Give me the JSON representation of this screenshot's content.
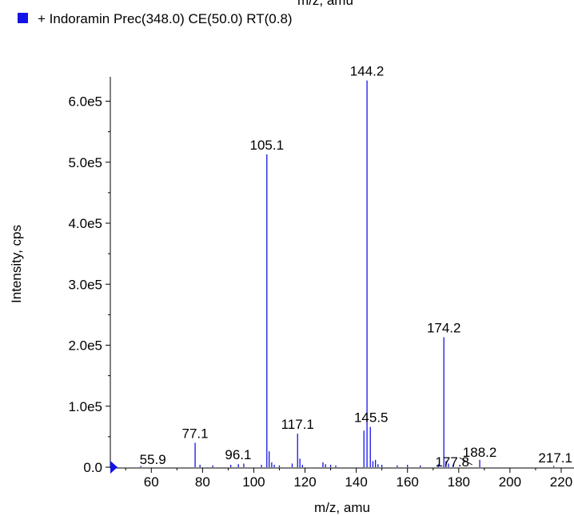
{
  "header": {
    "cut_axis_label": "m/z, amu",
    "legend_text": "+ Indoramin Prec(348.0) CE(50.0) RT(0.8)"
  },
  "colors": {
    "series": "#1414e6",
    "annotation_line": "#000000",
    "axis": "#000000"
  },
  "chart_data": {
    "type": "bar",
    "xlabel": "m/z, amu",
    "ylabel": "Intensity, cps",
    "xlim": [
      44,
      225
    ],
    "ylim": [
      0,
      640000
    ],
    "x_ticks": [
      60,
      80,
      100,
      120,
      140,
      160,
      180,
      200,
      220
    ],
    "x_tick_labels": [
      "60",
      "80",
      "100",
      "120",
      "140",
      "160",
      "180",
      "200",
      "220"
    ],
    "y_ticks": [
      0,
      100000,
      200000,
      300000,
      400000,
      500000,
      600000
    ],
    "y_tick_labels": [
      "0.0",
      "1.0e5",
      "2.0e5",
      "3.0e5",
      "4.0e5",
      "5.0e5",
      "6.0e5"
    ],
    "grid": false,
    "legend": "top-left",
    "series": [
      {
        "name": "+ Indoramin Prec(348.0) CE(50.0) RT(0.8)",
        "peaks": [
          {
            "x": 55.9,
            "y": 2000
          },
          {
            "x": 77.1,
            "y": 40000
          },
          {
            "x": 79.0,
            "y": 4000
          },
          {
            "x": 84.0,
            "y": 3000
          },
          {
            "x": 91.0,
            "y": 4000
          },
          {
            "x": 94.0,
            "y": 5000
          },
          {
            "x": 96.1,
            "y": 6000
          },
          {
            "x": 103.0,
            "y": 4000
          },
          {
            "x": 105.1,
            "y": 513000
          },
          {
            "x": 106.0,
            "y": 26000
          },
          {
            "x": 107.0,
            "y": 8000
          },
          {
            "x": 108.0,
            "y": 4000
          },
          {
            "x": 110.0,
            "y": 3000
          },
          {
            "x": 115.0,
            "y": 6000
          },
          {
            "x": 117.1,
            "y": 55000
          },
          {
            "x": 118.0,
            "y": 14000
          },
          {
            "x": 119.0,
            "y": 4000
          },
          {
            "x": 127.0,
            "y": 8000
          },
          {
            "x": 128.0,
            "y": 5000
          },
          {
            "x": 130.0,
            "y": 4000
          },
          {
            "x": 132.0,
            "y": 3000
          },
          {
            "x": 143.0,
            "y": 60000
          },
          {
            "x": 144.2,
            "y": 634000
          },
          {
            "x": 145.5,
            "y": 66000
          },
          {
            "x": 146.5,
            "y": 10000
          },
          {
            "x": 147.5,
            "y": 12000
          },
          {
            "x": 148.5,
            "y": 5000
          },
          {
            "x": 150.0,
            "y": 4000
          },
          {
            "x": 156.0,
            "y": 3000
          },
          {
            "x": 160.0,
            "y": 4000
          },
          {
            "x": 165.0,
            "y": 3000
          },
          {
            "x": 172.0,
            "y": 5000
          },
          {
            "x": 174.2,
            "y": 213000
          },
          {
            "x": 175.0,
            "y": 10000
          },
          {
            "x": 176.0,
            "y": 6000
          },
          {
            "x": 177.8,
            "y": 4000
          },
          {
            "x": 188.2,
            "y": 12000
          },
          {
            "x": 217.1,
            "y": 2000
          }
        ],
        "labels": [
          {
            "x": 55.9,
            "text": "55.9"
          },
          {
            "x": 77.1,
            "text": "77.1"
          },
          {
            "x": 96.1,
            "text": "96.1"
          },
          {
            "x": 105.1,
            "text": "105.1"
          },
          {
            "x": 117.1,
            "text": "117.1"
          },
          {
            "x": 144.2,
            "text": "144.2"
          },
          {
            "x": 145.5,
            "text": "145.5"
          },
          {
            "x": 174.2,
            "text": "174.2"
          },
          {
            "x": 177.8,
            "text": "177.8"
          },
          {
            "x": 188.2,
            "text": "188.2"
          },
          {
            "x": 217.1,
            "text": "217.1"
          }
        ]
      }
    ]
  }
}
